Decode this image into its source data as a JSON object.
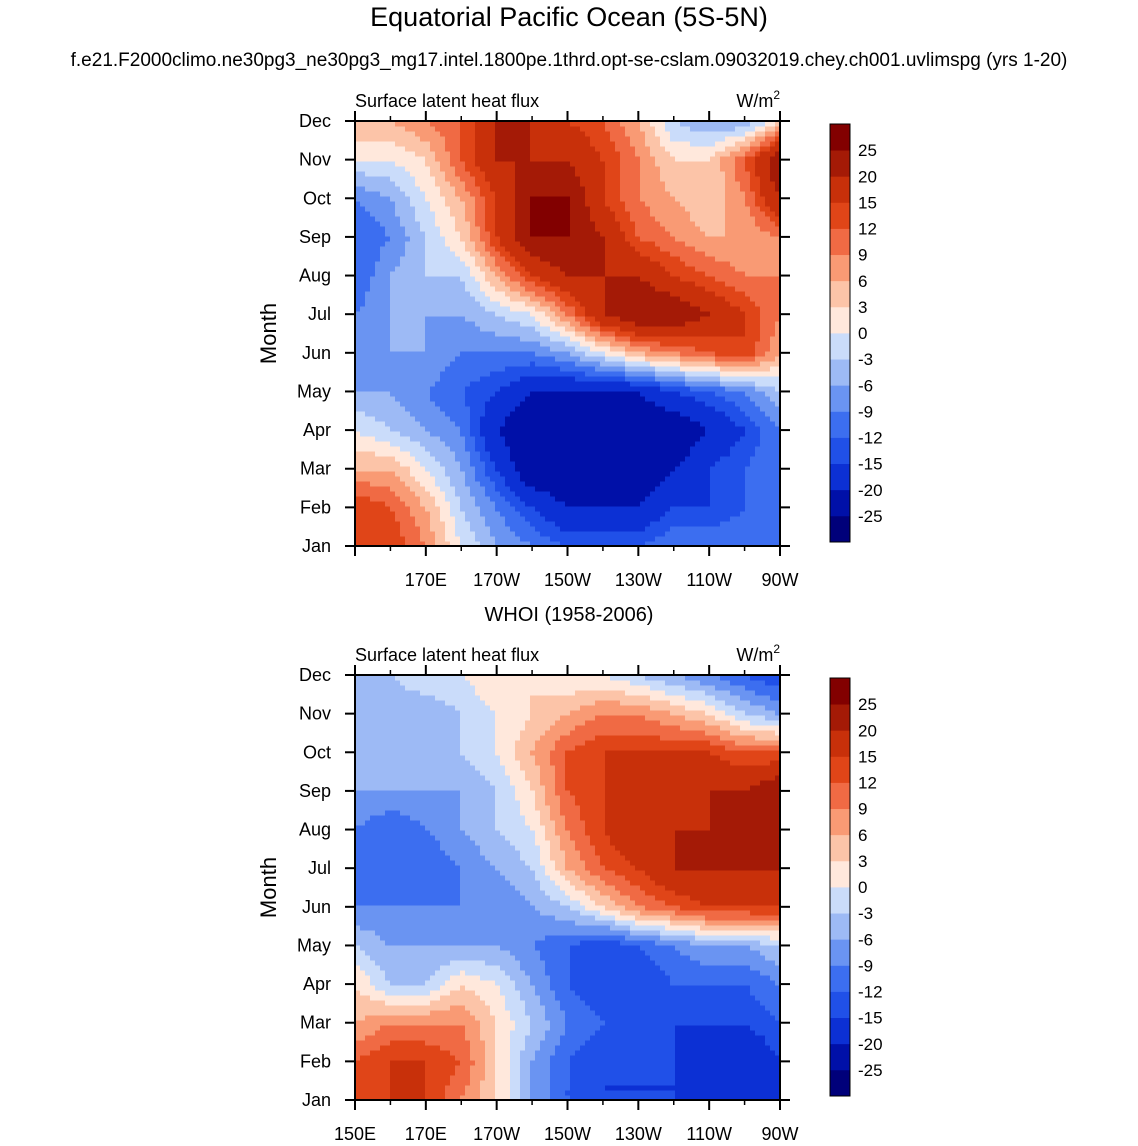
{
  "title": "Equatorial Pacific Ocean (5S-5N)",
  "subtitle": "f.e21.F2000climo.ne30pg3_ne30pg3_mg17.intel.1800pe.1thrd.opt-se-cslam.09032019.chey.ch001.uvlimspg (yrs 1-20)",
  "chart_data": [
    {
      "type": "heatmap",
      "title": "",
      "left_label": "Surface latent heat flux",
      "units": "W/m",
      "units_superscript": "2",
      "ylabel": "Month",
      "months": [
        "Jan",
        "Feb",
        "Mar",
        "Apr",
        "May",
        "Jun",
        "Jul",
        "Aug",
        "Sep",
        "Oct",
        "Nov",
        "Dec"
      ],
      "x_ticks": [
        "",
        "170E",
        "170W",
        "150W",
        "130W",
        "110W",
        "90W"
      ],
      "x": [
        150,
        160,
        170,
        180,
        190,
        200,
        210,
        220,
        230,
        240,
        250,
        260,
        270
      ],
      "values": [
        [
          15,
          15,
          9,
          0,
          -6,
          -9,
          -12,
          -12,
          -12,
          -9,
          -9,
          -9,
          -12
        ],
        [
          15,
          12,
          6,
          -3,
          -9,
          -15,
          -20,
          -20,
          -20,
          -15,
          -15,
          -12,
          -12
        ],
        [
          6,
          6,
          0,
          -6,
          -15,
          -25,
          -25,
          -25,
          -25,
          -20,
          -15,
          -12,
          -9
        ],
        [
          0,
          -3,
          -6,
          -9,
          -20,
          -25,
          -25,
          -25,
          -25,
          -25,
          -20,
          -15,
          -9
        ],
        [
          -6,
          -6,
          -9,
          -12,
          -15,
          -20,
          -20,
          -20,
          -20,
          -15,
          -12,
          -9,
          -3
        ],
        [
          -9,
          -6,
          -6,
          -9,
          -9,
          -9,
          -6,
          0,
          6,
          9,
          12,
          15,
          6
        ],
        [
          -9,
          -6,
          -6,
          -6,
          -3,
          0,
          9,
          20,
          25,
          25,
          20,
          15,
          9
        ],
        [
          -12,
          -6,
          -3,
          -3,
          6,
          15,
          20,
          20,
          20,
          15,
          12,
          9,
          9
        ],
        [
          -12,
          -9,
          -3,
          3,
          15,
          25,
          25,
          20,
          12,
          9,
          6,
          6,
          9
        ],
        [
          -9,
          -6,
          0,
          6,
          15,
          25,
          25,
          15,
          9,
          6,
          3,
          9,
          20
        ],
        [
          0,
          0,
          3,
          12,
          20,
          20,
          20,
          15,
          9,
          3,
          3,
          12,
          25
        ],
        [
          6,
          6,
          9,
          12,
          20,
          20,
          15,
          12,
          6,
          -3,
          -6,
          -6,
          3
        ]
      ],
      "levels": [
        -25,
        -20,
        -15,
        -12,
        -9,
        -6,
        -3,
        0,
        3,
        6,
        9,
        12,
        15,
        20,
        25
      ],
      "colors": [
        "#00007a",
        "#0010a8",
        "#0c30d4",
        "#2050e8",
        "#3c6ef0",
        "#6a94f2",
        "#9dbaf5",
        "#cadcfa",
        "#ffe8dc",
        "#fcc4a8",
        "#f99a74",
        "#f06a44",
        "#e04518",
        "#c8300a",
        "#a41a06",
        "#820000"
      ]
    },
    {
      "type": "heatmap",
      "title": "WHOI (1958-2006)",
      "left_label": "Surface latent heat flux",
      "units": "W/m",
      "units_superscript": "2",
      "ylabel": "Month",
      "months": [
        "Jan",
        "Feb",
        "Mar",
        "Apr",
        "May",
        "Jun",
        "Jul",
        "Aug",
        "Sep",
        "Oct",
        "Nov",
        "Dec"
      ],
      "x_ticks": [
        "150E",
        "170E",
        "170W",
        "150W",
        "130W",
        "110W",
        "90W"
      ],
      "x": [
        150,
        160,
        170,
        180,
        190,
        200,
        210,
        220,
        230,
        240,
        250,
        260,
        270
      ],
      "values": [
        [
          12,
          15,
          15,
          9,
          3,
          -6,
          -12,
          -15,
          -15,
          -15,
          -20,
          -20,
          -20
        ],
        [
          12,
          15,
          15,
          12,
          3,
          -6,
          -12,
          -15,
          -15,
          -15,
          -20,
          -20,
          -15
        ],
        [
          6,
          9,
          9,
          9,
          3,
          -3,
          -9,
          -12,
          -15,
          -15,
          -15,
          -15,
          -12
        ],
        [
          3,
          -3,
          -3,
          3,
          0,
          -6,
          -12,
          -15,
          -15,
          -12,
          -12,
          -12,
          -9
        ],
        [
          -3,
          -6,
          -6,
          -6,
          -6,
          -9,
          -12,
          -15,
          -12,
          -9,
          -6,
          -6,
          -3
        ],
        [
          -9,
          -9,
          -9,
          -9,
          -9,
          -6,
          -3,
          3,
          9,
          12,
          15,
          15,
          15
        ],
        [
          -12,
          -12,
          -12,
          -9,
          -6,
          -3,
          6,
          12,
          15,
          20,
          20,
          20,
          20
        ],
        [
          -9,
          -12,
          -9,
          -6,
          -3,
          0,
          9,
          15,
          20,
          20,
          20,
          20,
          20
        ],
        [
          -6,
          -6,
          -6,
          -6,
          -3,
          3,
          12,
          15,
          15,
          15,
          20,
          20,
          25
        ],
        [
          -3,
          -6,
          -6,
          -3,
          0,
          6,
          12,
          15,
          15,
          15,
          15,
          12,
          12
        ],
        [
          -3,
          -6,
          -6,
          -3,
          0,
          3,
          6,
          9,
          9,
          6,
          3,
          -3,
          -6
        ],
        [
          -3,
          -3,
          0,
          0,
          3,
          3,
          0,
          0,
          -3,
          -6,
          -9,
          -12,
          -15
        ]
      ],
      "levels": [
        -25,
        -20,
        -15,
        -12,
        -9,
        -6,
        -3,
        0,
        3,
        6,
        9,
        12,
        15,
        20,
        25
      ],
      "colors": [
        "#00007a",
        "#0010a8",
        "#0c30d4",
        "#2050e8",
        "#3c6ef0",
        "#6a94f2",
        "#9dbaf5",
        "#cadcfa",
        "#ffe8dc",
        "#fcc4a8",
        "#f99a74",
        "#f06a44",
        "#e04518",
        "#c8300a",
        "#a41a06",
        "#820000"
      ]
    }
  ]
}
